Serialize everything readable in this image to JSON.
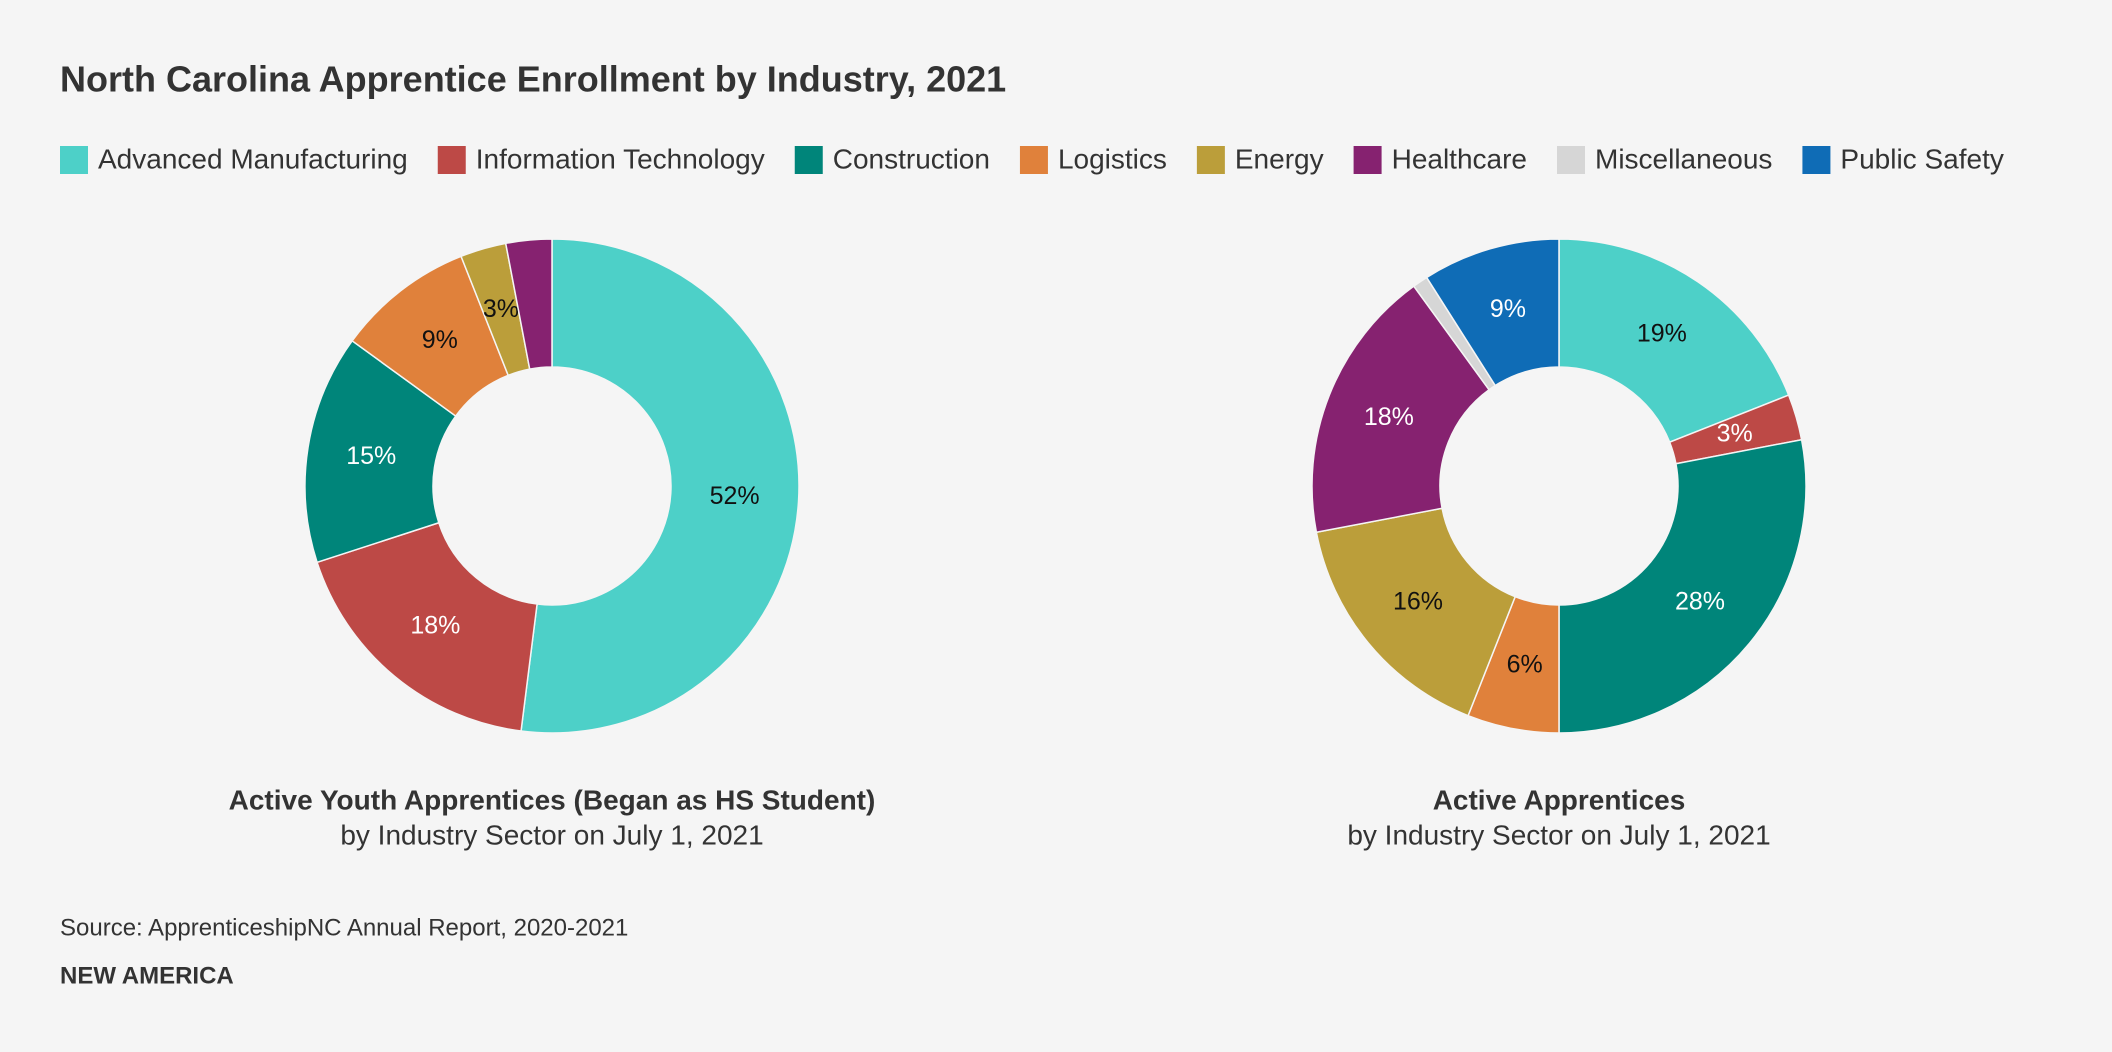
{
  "title": "North Carolina Apprentice Enrollment by Industry, 2021",
  "source": "Source: ApprenticeshipNC Annual Report, 2020-2021",
  "brand": "NEW AMERICA",
  "chart_data": [
    {
      "type": "pie",
      "title": "Active Youth Apprentices (Began as HS Student)",
      "subtitle": "by Industry Sector on July 1, 2021",
      "categories": [
        "Advanced Manufacturing",
        "Information Technology",
        "Construction",
        "Logistics",
        "Energy",
        "Healthcare"
      ],
      "values": [
        52,
        18,
        15,
        9,
        3,
        3
      ],
      "value_labels": [
        "52%",
        "18%",
        "15%",
        "9%",
        "3%",
        null
      ],
      "colors": [
        "#4dd0c8",
        "#bd4946",
        "#00857a",
        "#e0813b",
        "#bb9e3a",
        "#862270"
      ]
    },
    {
      "type": "pie",
      "title": "Active Apprentices",
      "subtitle": "by Industry Sector on July 1, 2021",
      "categories": [
        "Advanced Manufacturing",
        "Information Technology",
        "Construction",
        "Logistics",
        "Energy",
        "Healthcare",
        "Miscellaneous",
        "Public Safety"
      ],
      "values": [
        19,
        3,
        28,
        6,
        16,
        18,
        1,
        9
      ],
      "value_labels": [
        "19%",
        "3%",
        "28%",
        "6%",
        "16%",
        "18%",
        null,
        "9%"
      ],
      "colors": [
        "#4dd0c8",
        "#bd4946",
        "#00857a",
        "#e0813b",
        "#bb9e3a",
        "#862270",
        "#d6d6d6",
        "#0f6cb6"
      ]
    }
  ]
}
